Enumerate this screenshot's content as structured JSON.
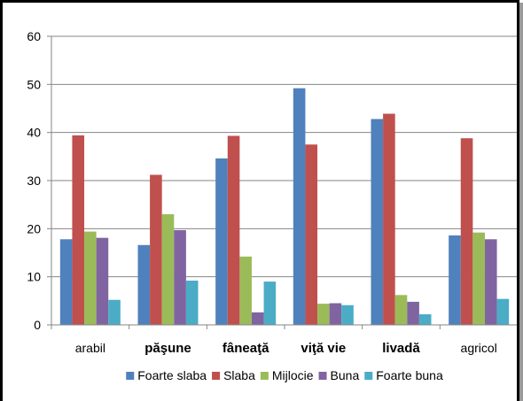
{
  "chart_data": {
    "type": "bar",
    "categories": [
      "arabil",
      "păşune",
      "fâneaţă",
      "viţă vie",
      "livadă",
      "agricol"
    ],
    "bold_categories": [
      false,
      true,
      true,
      true,
      true,
      false
    ],
    "series": [
      {
        "name": "Foarte slaba",
        "color": "#4f81bd",
        "values": [
          17.8,
          16.6,
          34.6,
          49.2,
          42.8,
          18.6
        ]
      },
      {
        "name": "Slaba",
        "color": "#c0504d",
        "values": [
          39.4,
          31.2,
          39.3,
          37.5,
          43.9,
          38.8
        ]
      },
      {
        "name": "Mijlocie",
        "color": "#9bbb59",
        "values": [
          19.4,
          23.0,
          14.2,
          4.4,
          6.2,
          19.2
        ]
      },
      {
        "name": "Buna",
        "color": "#8064a2",
        "values": [
          18.1,
          19.7,
          2.6,
          4.5,
          4.8,
          17.8
        ]
      },
      {
        "name": "Foarte buna",
        "color": "#4bacc6",
        "values": [
          5.2,
          9.2,
          9.0,
          4.1,
          2.2,
          5.4
        ]
      }
    ],
    "yticks": [
      0,
      10,
      20,
      30,
      40,
      50,
      60
    ],
    "ylim": [
      0,
      60
    ],
    "grid": true,
    "legend_position": "bottom"
  }
}
